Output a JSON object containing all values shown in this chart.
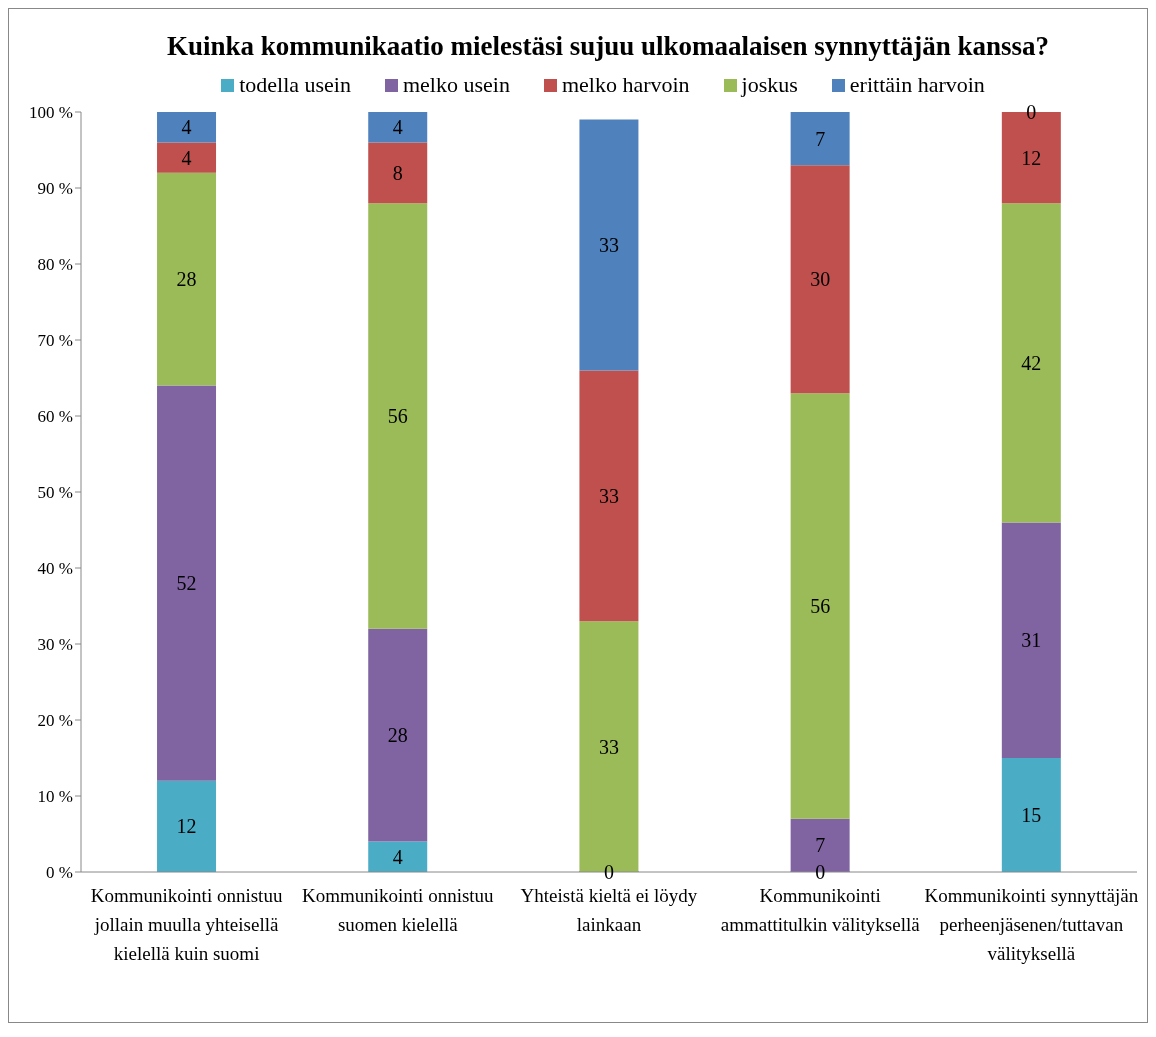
{
  "chart_data": {
    "type": "bar",
    "title": "Kuinka kommunikaatio mielestäsi sujuu ulkomaalaisen synnyttäjän kanssa?",
    "stacked": true,
    "legend": "top",
    "grid": false,
    "categories": [
      "Kommunikointi onnistuu jollain muulla yhteisellä kielellä kuin suomi",
      "Kommunikointi onnistuu suomen kielellä",
      "Yhteistä kieltä ei löydy lainkaan",
      "Kommunikointi ammattitulkin välityksellä",
      "Kommunikointi synnyttäjän perheenjäsenen/tuttavan välityksellä"
    ],
    "ylim": [
      0,
      100
    ],
    "yticks": [
      {
        "value": 0,
        "label": "0 %"
      },
      {
        "value": 10,
        "label": "10 %"
      },
      {
        "value": 20,
        "label": "20 %"
      },
      {
        "value": 30,
        "label": "30 %"
      },
      {
        "value": 40,
        "label": "40 %"
      },
      {
        "value": 50,
        "label": "50 %"
      },
      {
        "value": 60,
        "label": "60 %"
      },
      {
        "value": 70,
        "label": "70 %"
      },
      {
        "value": 80,
        "label": "80 %"
      },
      {
        "value": 90,
        "label": "90 %"
      },
      {
        "value": 100,
        "label": "100 %"
      }
    ],
    "series": [
      {
        "name": "todella usein",
        "color": "#4bacc6",
        "values": [
          12,
          4,
          0,
          0,
          15
        ],
        "value_labels": [
          "12",
          "4",
          "0",
          "0",
          "15"
        ]
      },
      {
        "name": "melko usein",
        "color": "#8064a2",
        "values": [
          52,
          28,
          0,
          7,
          31
        ],
        "value_labels": [
          "52",
          "28",
          null,
          "7",
          "31"
        ]
      },
      {
        "name": "joskus",
        "color": "#9bbb59",
        "values": [
          28,
          56,
          33,
          56,
          42
        ],
        "value_labels": [
          "28",
          "56",
          "33",
          "56",
          "42"
        ]
      },
      {
        "name": "melko harvoin",
        "color": "#c0504d",
        "values": [
          4,
          8,
          33,
          30,
          12
        ],
        "value_labels": [
          "4",
          "8",
          "33",
          "30",
          "12"
        ]
      },
      {
        "name": "erittäin harvoin",
        "color": "#4f81bd",
        "values": [
          4,
          4,
          33,
          7,
          0
        ],
        "value_labels": [
          "4",
          "4",
          "33",
          "7",
          "0"
        ]
      }
    ]
  }
}
